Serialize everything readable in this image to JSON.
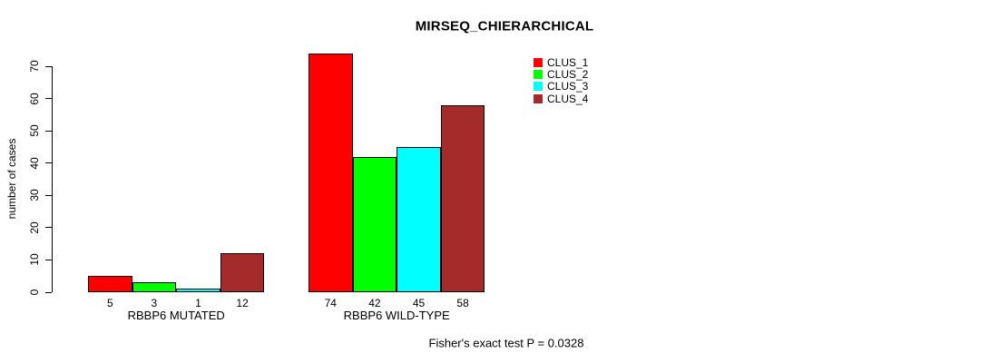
{
  "chart_data": {
    "type": "bar",
    "title": "MIRSEQ_CHIERARCHICAL",
    "ylabel": "number of cases",
    "xlabel": "",
    "ylim": [
      0,
      70
    ],
    "yticks": [
      0,
      10,
      20,
      30,
      40,
      50,
      60,
      70
    ],
    "grid": false,
    "legend_position": "top-right",
    "categories": [
      "RBBP6 MUTATED",
      "RBBP6 WILD-TYPE"
    ],
    "series": [
      {
        "name": "CLUS_1",
        "color": "#FF0000",
        "values": [
          5,
          74
        ]
      },
      {
        "name": "CLUS_2",
        "color": "#00FF00",
        "values": [
          3,
          42
        ]
      },
      {
        "name": "CLUS_3",
        "color": "#00FFFF",
        "values": [
          1,
          45
        ]
      },
      {
        "name": "CLUS_4",
        "color": "#A52A2A",
        "values": [
          12,
          58
        ]
      }
    ],
    "bar_border_color": "#000000",
    "annotation": "Fisher's exact test P = 0.0328"
  }
}
